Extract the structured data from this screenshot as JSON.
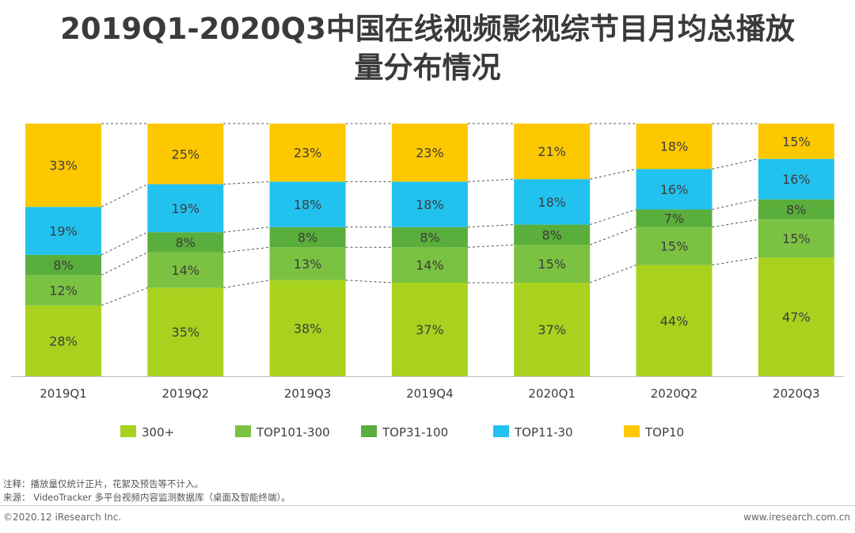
{
  "title_line1": "2019Q1-2020Q3中国在线视频影视综节目月均总播放",
  "title_line2": "量分布情况",
  "chart_data": {
    "type": "bar",
    "stacked": true,
    "percent": true,
    "title": "2019Q1-2020Q3中国在线视频影视综节目月均总播放量分布情况",
    "categories": [
      "2019Q1",
      "2019Q2",
      "2019Q3",
      "2019Q4",
      "2020Q1",
      "2020Q2",
      "2020Q3"
    ],
    "series": [
      {
        "name": "300+",
        "color": "#a8d21e",
        "values": [
          28,
          35,
          38,
          37,
          37,
          44,
          47
        ]
      },
      {
        "name": "TOP101-300",
        "color": "#7cc242",
        "values": [
          12,
          14,
          13,
          14,
          15,
          15,
          15
        ]
      },
      {
        "name": "TOP31-100",
        "color": "#5aae3b",
        "values": [
          8,
          8,
          8,
          8,
          8,
          7,
          8
        ]
      },
      {
        "name": "TOP11-30",
        "color": "#22c2ef",
        "values": [
          19,
          19,
          18,
          18,
          18,
          16,
          16
        ]
      },
      {
        "name": "TOP10",
        "color": "#fdc800",
        "values": [
          33,
          25,
          23,
          23,
          21,
          18,
          15
        ]
      }
    ],
    "ylim": [
      0,
      100
    ],
    "value_suffix": "%",
    "legend_position": "bottom",
    "grid": false
  },
  "footer": {
    "note": "注释：播放量仅统计正片，花絮及预告等不计入。",
    "source": "来源： VideoTracker 多平台视频内容监测数据库（桌面及智能终端）。",
    "copyright": "©2020.12 iResearch Inc.",
    "website": "www.iresearch.com.cn"
  }
}
